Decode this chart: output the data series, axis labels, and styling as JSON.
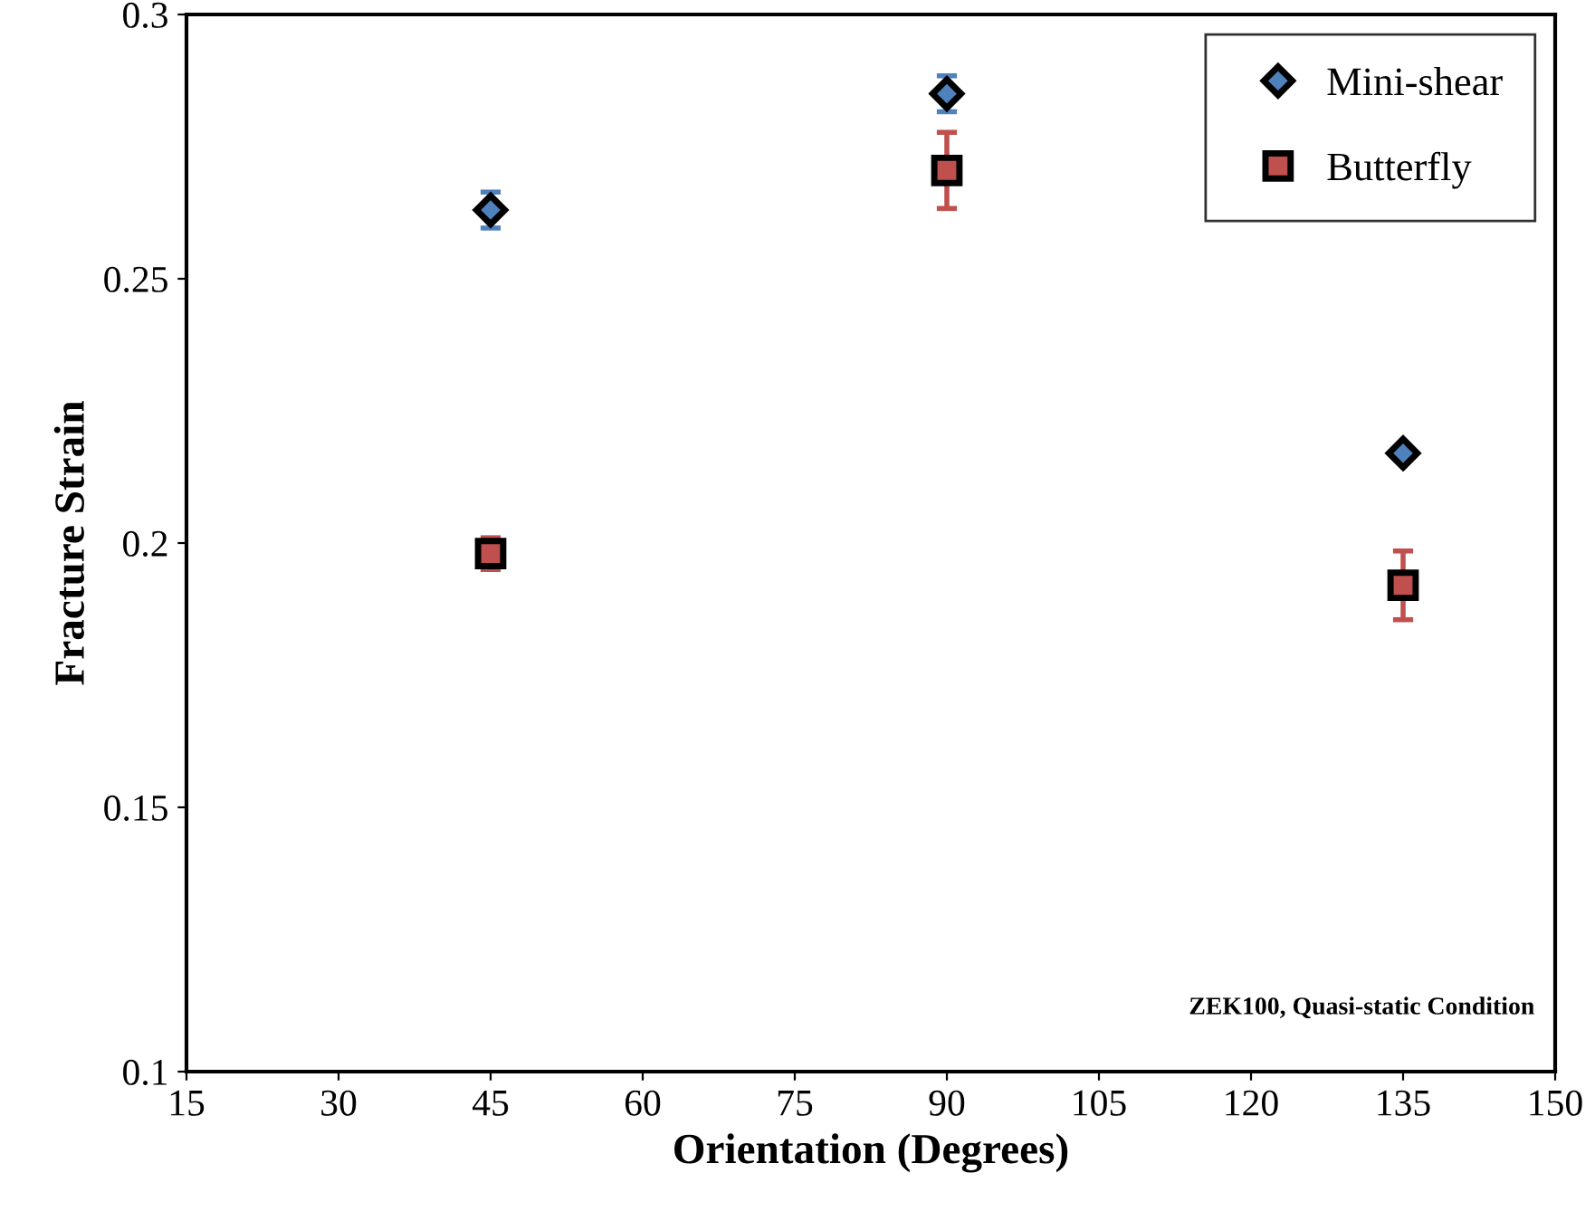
{
  "chart_data": {
    "type": "scatter",
    "xlabel": "Orientation (Degrees)",
    "ylabel": "Fracture Strain",
    "x": [
      45,
      90,
      135
    ],
    "series": [
      {
        "name": "Mini-shear",
        "color": "#4f81bd",
        "marker": "diamond",
        "values": [
          0.263,
          0.285,
          0.217
        ],
        "errors": [
          0.0034,
          0.0034,
          0.001
        ]
      },
      {
        "name": "Butterfly",
        "color": "#c0504d",
        "marker": "square",
        "values": [
          0.198,
          0.2705,
          0.192
        ],
        "errors": [
          0.003,
          0.0072,
          0.0065
        ]
      }
    ],
    "xlim": [
      15,
      150
    ],
    "xticks": [
      15,
      30,
      45,
      60,
      75,
      90,
      105,
      120,
      135,
      150
    ],
    "ylim": [
      0.1,
      0.3
    ],
    "yticks": [
      0.1,
      0.15,
      0.2,
      0.25,
      0.3
    ],
    "annotations": [
      "ZEK100, Quasi-static Condition"
    ],
    "grid": false,
    "legend": "top right"
  }
}
